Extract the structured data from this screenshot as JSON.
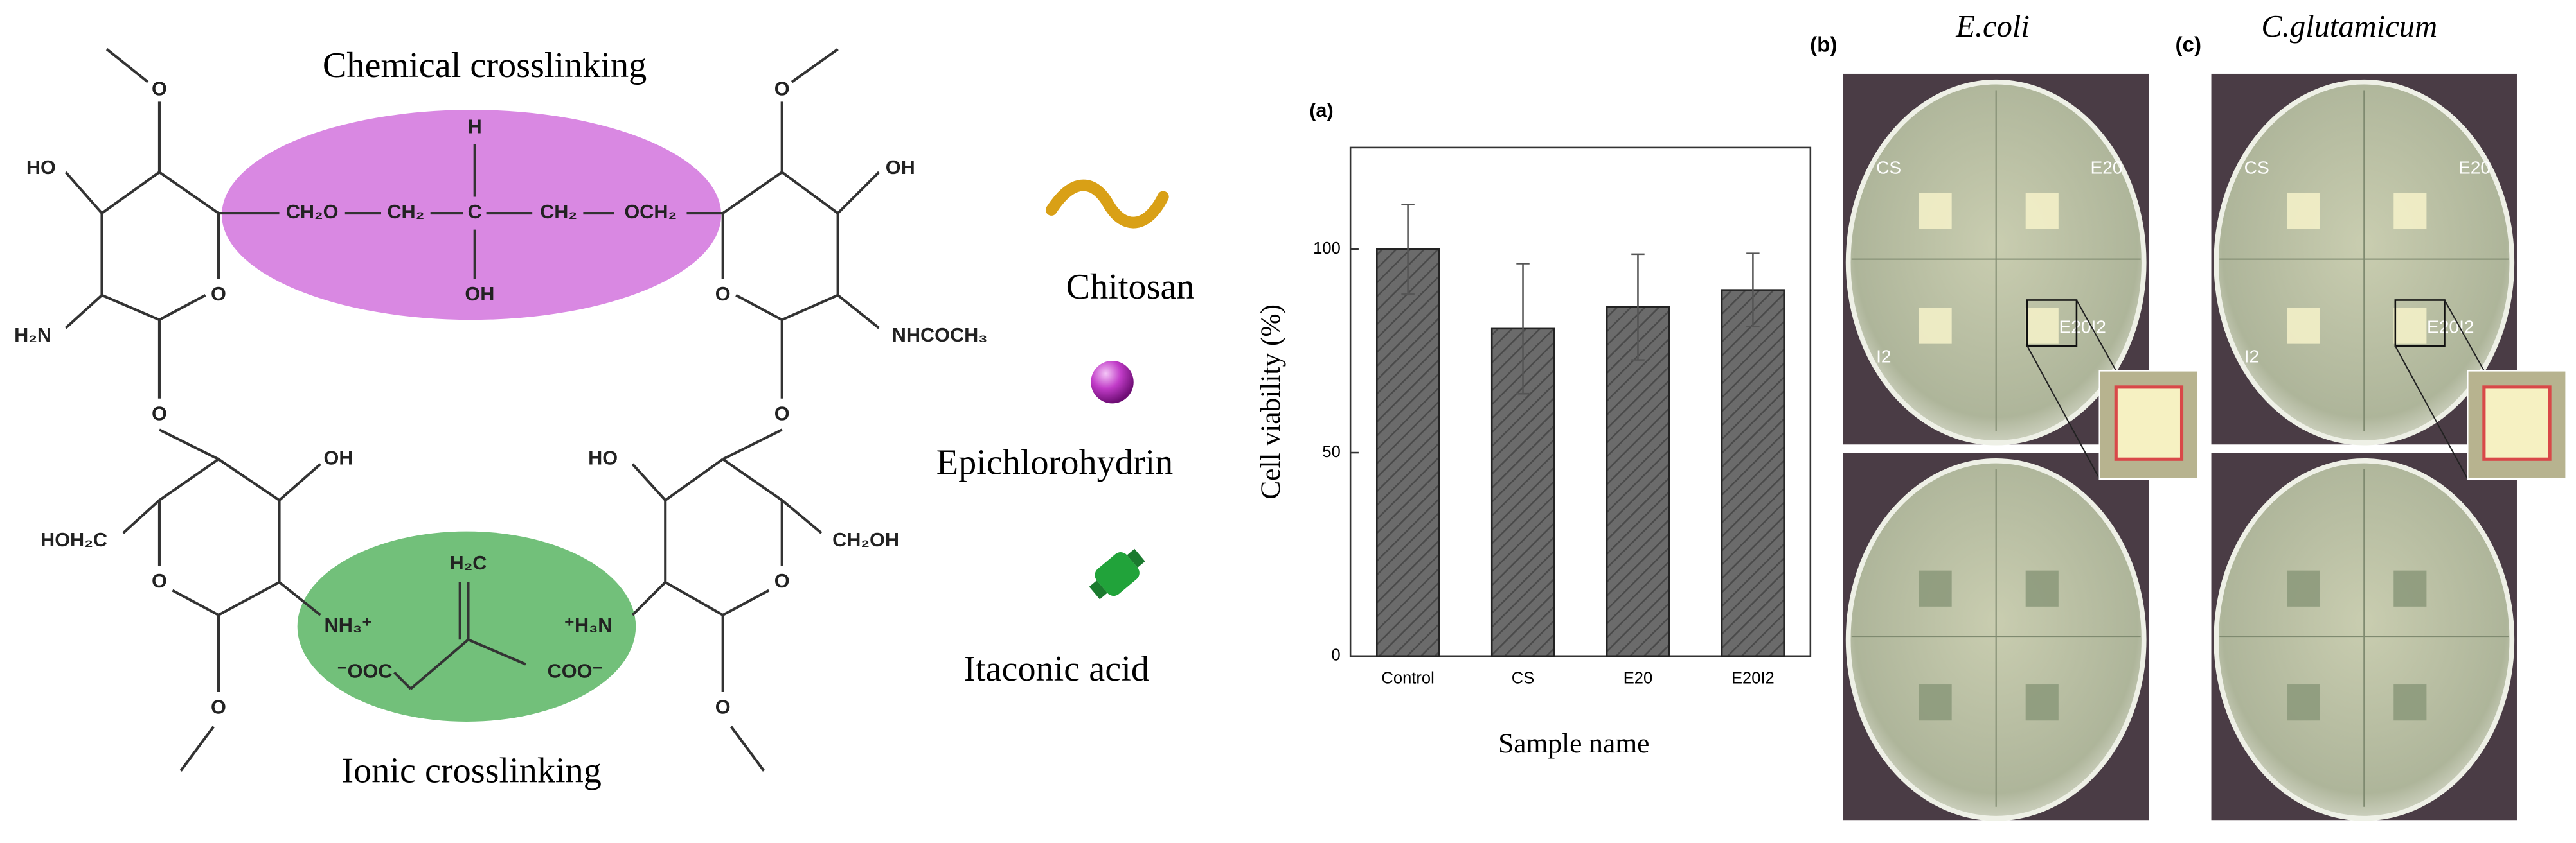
{
  "diagram": {
    "top_label": "Chemical crosslinking",
    "bottom_label": "Ionic crosslinking",
    "atoms": [
      "O",
      "HO",
      "O",
      "H₂N",
      "O",
      "CH₂O",
      "CH₂",
      "C",
      "H",
      "OH",
      "CH₂",
      "OCH₂",
      "O",
      "OH",
      "O",
      "NHCOCH₃",
      "O",
      "OH",
      "HOH₂C",
      "O",
      "NH₃⁺",
      "O",
      "H₂C",
      "⁻OOC",
      "COO⁻",
      "HO",
      "CH₂OH",
      "O",
      "⁺H₃N",
      "O"
    ]
  },
  "legend": [
    "Chitosan",
    "Epichlorohydrin",
    "Itaconic acid"
  ],
  "chart_data": {
    "type": "bar",
    "panel_label": "(a)",
    "ylabel": "Cell viability (%)",
    "xlabel": "Sample name",
    "categories": [
      "Control",
      "CS",
      "E20",
      "E20I2"
    ],
    "values": [
      100,
      80.5,
      85.8,
      90
    ],
    "errors": [
      11,
      16,
      13,
      9
    ],
    "color": "#6b6b6b",
    "ylim": [
      0,
      125
    ],
    "yticks": [
      0,
      50,
      100
    ]
  },
  "photos": [
    {
      "panel_label": "(b)",
      "title": "E.coli",
      "labels": [
        "CS",
        "E20",
        "I2",
        "E20I2"
      ]
    },
    {
      "panel_label": "(c)",
      "title": "C.glutamicum",
      "labels": [
        "CS",
        "E20",
        "I2",
        "E20I2"
      ]
    }
  ]
}
